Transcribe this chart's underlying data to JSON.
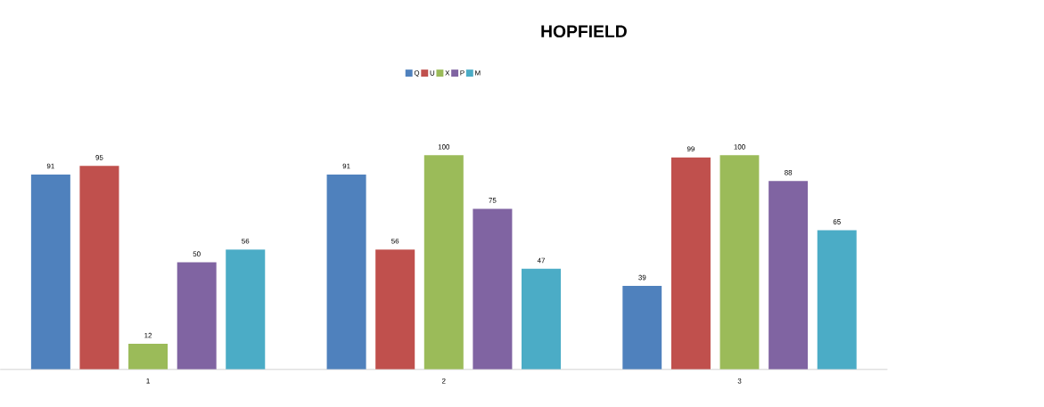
{
  "chart_data": {
    "type": "bar",
    "title": "HOPFIELD",
    "categories": [
      "1",
      "2",
      "3"
    ],
    "series": [
      {
        "name": "Q",
        "color": "#4f81bd",
        "values": [
          91,
          91,
          39
        ]
      },
      {
        "name": "U",
        "color": "#c0504d",
        "values": [
          95,
          56,
          99
        ]
      },
      {
        "name": "X",
        "color": "#9bbb59",
        "values": [
          12,
          100,
          100
        ]
      },
      {
        "name": "P",
        "color": "#8064a2",
        "values": [
          50,
          75,
          88
        ]
      },
      {
        "name": "M",
        "color": "#4bacc6",
        "values": [
          56,
          47,
          65
        ]
      }
    ],
    "data_labels": true,
    "legend": "top",
    "grid": false
  }
}
